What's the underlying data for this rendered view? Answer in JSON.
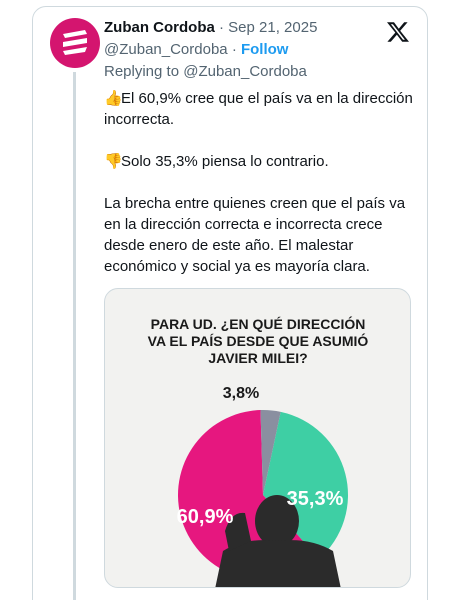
{
  "author": {
    "name": "Zuban Cordoba",
    "separator": "·",
    "date": "Sep 21, 2025",
    "handle": "@Zuban_Cordoba",
    "handle_sep": "·",
    "follow_label": "Follow",
    "replying_prefix": "Replying to",
    "replying_to": "@Zuban_Cordoba"
  },
  "tweet": {
    "line1_emoji": "👍",
    "line1": "El 60,9% cree que el país va en la dirección incorrecta.",
    "line2_emoji": "👎",
    "line2": "Solo 35,3% piensa lo contrario.",
    "line3": "La brecha entre quienes creen que el país va en la dirección correcta e incorrecta crece desde enero de este año.  El malestar económico y social ya es mayoría clara."
  },
  "colors": {
    "brand": "#d4156f",
    "follow": "#1d9bf0",
    "correct": "#3ecfa4",
    "incorrect": "#e6177f",
    "other": "#8a8fa0"
  },
  "icons": {
    "avatar": "zuban-logo-icon",
    "platform": "x-logo-icon"
  },
  "chart_data": {
    "type": "pie",
    "title": "PARA UD. ¿EN QUÉ DIRECCIÓN VA EL PAÍS DESDE QUE ASUMIÓ JAVIER MILEI?",
    "title_lines": [
      "PARA UD. ¿EN QUÉ DIRECCIÓN",
      "VA EL PAÍS DESDE QUE ASUMIÓ",
      "JAVIER MILEI?"
    ],
    "slices": [
      {
        "label": "35,3%",
        "value": 35.3,
        "color": "#3ecfa4"
      },
      {
        "label": "60,9%",
        "value": 60.9,
        "color": "#e6177f"
      },
      {
        "label": "3,8%",
        "value": 3.8,
        "color": "#8a8fa0"
      }
    ]
  }
}
